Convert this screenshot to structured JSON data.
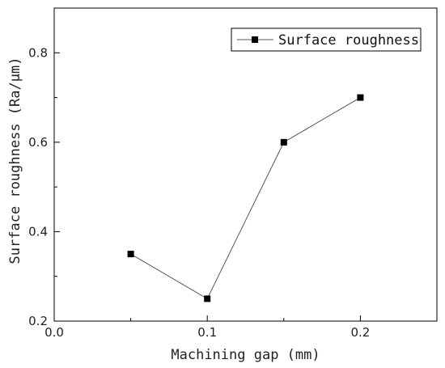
{
  "chart_data": {
    "type": "line",
    "xlabel": "Machining gap (mm)",
    "ylabel": "Surface roughness (Ra/μm)",
    "xlim": [
      0.0,
      0.25
    ],
    "ylim": [
      0.2,
      0.9
    ],
    "xticks": [
      0.0,
      0.1,
      0.2
    ],
    "xtick_labels": [
      "0.0",
      "0.1",
      "0.2"
    ],
    "xminor": [
      0.05,
      0.15,
      0.25
    ],
    "yticks": [
      0.2,
      0.4,
      0.6,
      0.8
    ],
    "ytick_labels": [
      "0.2",
      "0.4",
      "0.6",
      "0.8"
    ],
    "yminor": [
      0.3,
      0.5,
      0.7
    ],
    "grid": false,
    "legend_position": "top-right",
    "series": [
      {
        "name": "Surface roughness",
        "marker": "square",
        "color": "#000000",
        "x": [
          0.05,
          0.1,
          0.15,
          0.2
        ],
        "y": [
          0.35,
          0.25,
          0.6,
          0.7
        ]
      }
    ]
  }
}
